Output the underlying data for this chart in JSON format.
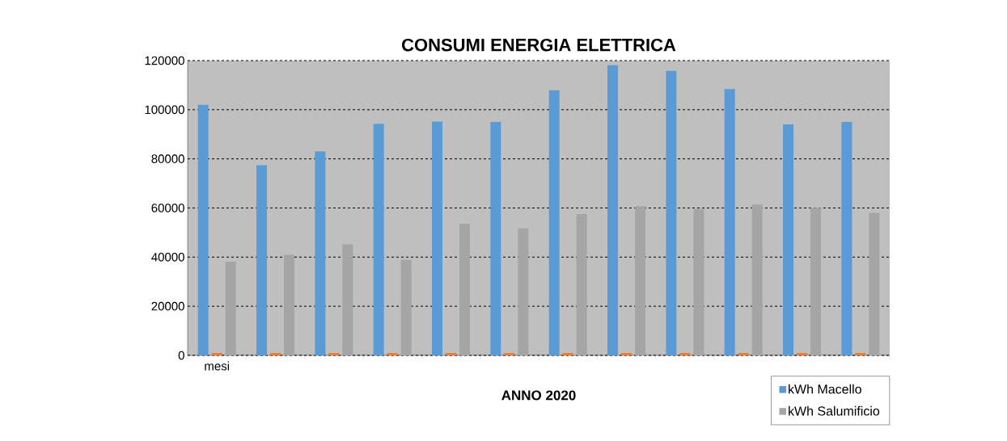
{
  "chart_data": {
    "type": "bar",
    "title": "CONSUMI ENERGIA ELETTRICA",
    "xlabel": "ANNO 2020",
    "categories": [
      "mesi",
      null,
      null,
      null,
      null,
      null,
      null,
      null,
      null,
      null,
      null,
      null
    ],
    "series": [
      {
        "name": "kWh Macello",
        "color": "#5b9bd5",
        "values": [
          102000,
          77400,
          83000,
          94300,
          95200,
          95000,
          107900,
          118200,
          115800,
          108400,
          94000,
          95000
        ]
      },
      {
        "color": "#ed7d31",
        "values": [
          1000,
          1000,
          1000,
          1000,
          1000,
          1000,
          1000,
          1000,
          1000,
          1000,
          1000,
          1000
        ]
      },
      {
        "name": "kWh Salumificio",
        "color": "#a5a5a5",
        "values": [
          38100,
          40900,
          45200,
          38900,
          53600,
          51700,
          57500,
          60700,
          59500,
          61400,
          60100,
          58000
        ]
      }
    ],
    "ylim": [
      0,
      120000
    ],
    "yticks": [
      0,
      20000,
      40000,
      60000,
      80000,
      100000,
      120000
    ],
    "grid": "y",
    "legend": "bottom right"
  }
}
